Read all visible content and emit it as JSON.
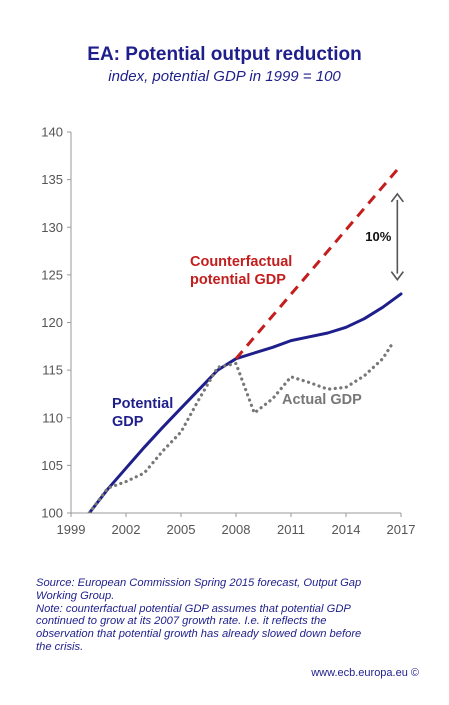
{
  "header": {
    "title": "EA: Potential output reduction",
    "subtitle": "index, potential GDP in 1999 = 100"
  },
  "chart_data": {
    "type": "line",
    "title": "EA: Potential output reduction",
    "subtitle": "index, potential GDP in 1999 = 100",
    "xlim": [
      1999,
      2017
    ],
    "ylim": [
      100,
      140
    ],
    "x_ticks": [
      1999,
      2002,
      2005,
      2008,
      2011,
      2014,
      2017
    ],
    "y_ticks": [
      100,
      105,
      110,
      115,
      120,
      125,
      130,
      135,
      140
    ],
    "grid": false,
    "legend": "inline labels",
    "series": [
      {
        "name": "Potential GDP",
        "color": "#1f1f8c",
        "style": "solid",
        "points": [
          [
            2000,
            100
          ],
          [
            2001,
            102.5
          ],
          [
            2002,
            104.7
          ],
          [
            2003,
            106.9
          ],
          [
            2004,
            109.0
          ],
          [
            2005,
            111.0
          ],
          [
            2006,
            113.0
          ],
          [
            2007,
            115.0
          ],
          [
            2008,
            116.2
          ],
          [
            2009,
            116.8
          ],
          [
            2010,
            117.4
          ],
          [
            2011,
            118.1
          ],
          [
            2012,
            118.5
          ],
          [
            2013,
            118.9
          ],
          [
            2014,
            119.5
          ],
          [
            2015,
            120.4
          ],
          [
            2016,
            121.6
          ],
          [
            2017,
            123.0
          ]
        ]
      },
      {
        "name": "Counterfactual potential GDP",
        "color": "#c31d1d",
        "style": "dashed",
        "points": [
          [
            2008,
            116.2
          ],
          [
            2017,
            136.5
          ]
        ]
      },
      {
        "name": "Actual GDP",
        "color": "#777777",
        "style": "dotted",
        "points": [
          [
            2000,
            100
          ],
          [
            2001,
            102.6
          ],
          [
            2002,
            103.3
          ],
          [
            2003,
            104.2
          ],
          [
            2004,
            106.5
          ],
          [
            2005,
            108.5
          ],
          [
            2006,
            112.0
          ],
          [
            2007,
            115.3
          ],
          [
            2008,
            115.7
          ],
          [
            2009,
            110.5
          ],
          [
            2010,
            112.0
          ],
          [
            2011,
            114.3
          ],
          [
            2012,
            113.7
          ],
          [
            2013,
            113.0
          ],
          [
            2014,
            113.2
          ],
          [
            2015,
            114.4
          ],
          [
            2016,
            116.2
          ],
          [
            2016.6,
            118.0
          ]
        ]
      }
    ],
    "annotations": {
      "gap_label": "10%",
      "gap_from": 133.5,
      "gap_to": 124.5,
      "gap_x": 2016.8,
      "label_potential": [
        "Potential",
        "GDP"
      ],
      "label_counterfactual": [
        "Counterfactual",
        "potential GDP"
      ],
      "label_actual": "Actual GDP"
    }
  },
  "notes": {
    "source_line1": "Source: European Commission Spring 2015 forecast, Output Gap",
    "source_line2": "Working Group.",
    "note_line1": "Note: counterfactual potential GDP assumes that potential GDP",
    "note_line2": "continued to grow at its 2007 growth rate. I.e. it reflects the",
    "note_line3": "observation that potential growth has already slowed down before",
    "note_line4": "the crisis."
  },
  "footer": {
    "website": "www.ecb.europa.eu ©"
  },
  "colors": {
    "text_blue": "#1f1f8c",
    "potential": "#1f1f8c",
    "counterfactual": "#c31d1d",
    "actual": "#777777",
    "axis": "#9a9a9a"
  }
}
